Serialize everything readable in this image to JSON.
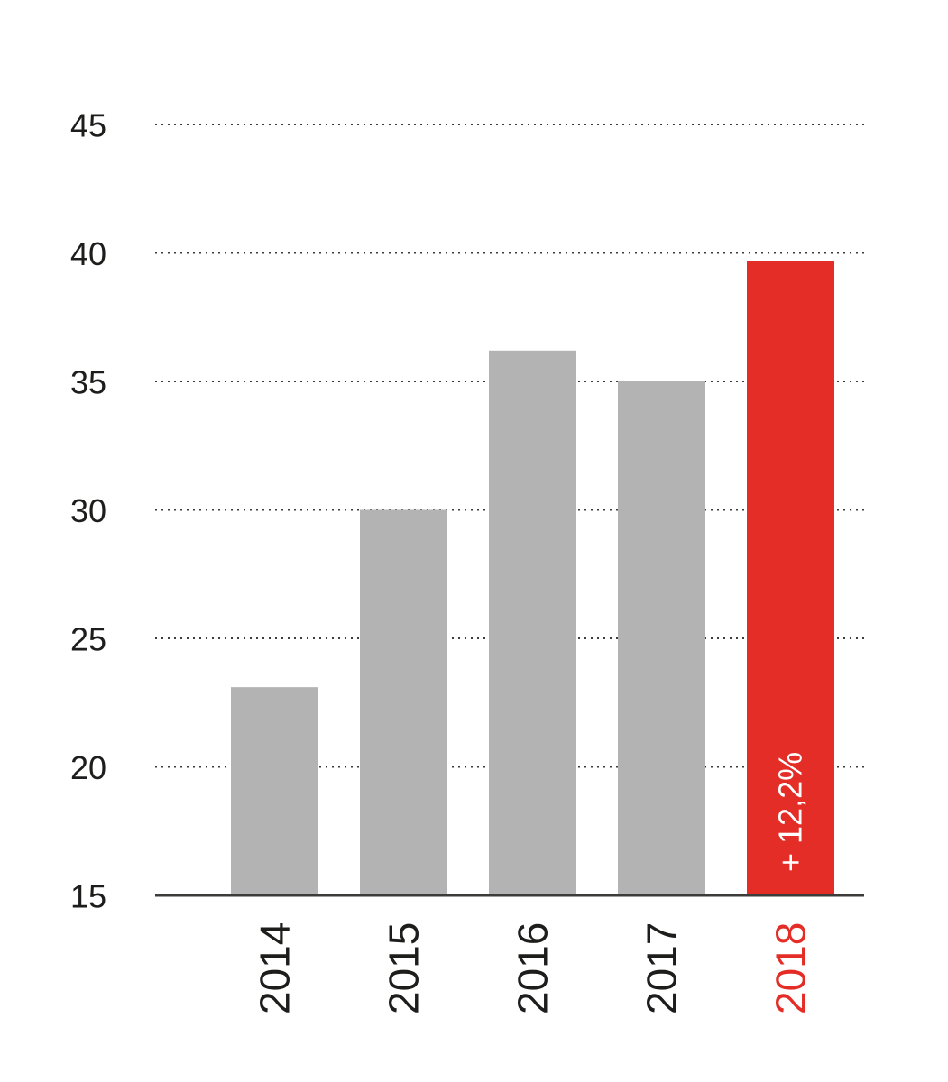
{
  "chart_data": {
    "type": "bar",
    "title": "",
    "xlabel": "",
    "ylabel": "",
    "categories": [
      "2014",
      "2015",
      "2016",
      "2017",
      "2018"
    ],
    "values": [
      23.1,
      30.0,
      36.2,
      35.0,
      39.7
    ],
    "ylim": [
      15,
      45
    ],
    "yticks": [
      15,
      20,
      25,
      30,
      35,
      40,
      45
    ],
    "ytick_labels": [
      "15",
      "20",
      "25",
      "30",
      "35",
      "40",
      "45"
    ],
    "grid": true,
    "grid_style": "dotted",
    "legend": "none",
    "highlight_index": 4,
    "colors": {
      "bar": "#b2b3b2",
      "highlight": "#e52d27",
      "grid": "#3c3c3b",
      "axis": "#3c3c3b",
      "text": "#1d1d1b"
    },
    "annotations": [
      {
        "category": "2018",
        "text": "+ 12,2%"
      }
    ]
  }
}
